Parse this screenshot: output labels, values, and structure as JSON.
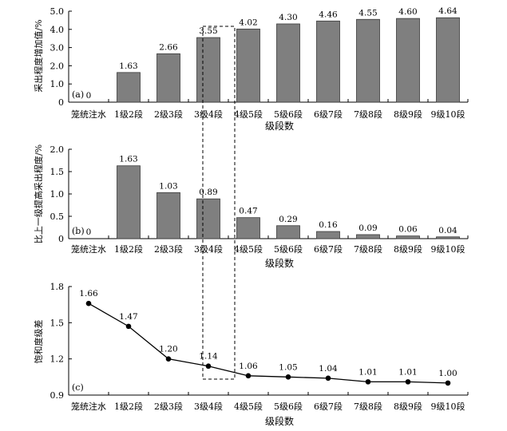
{
  "chart_data": [
    {
      "id": "a",
      "type": "bar",
      "panel_label": "(a)",
      "ylabel": "采出程度增加值/%",
      "xlabel": "级段数",
      "ylim": [
        0,
        5
      ],
      "yticks": [
        "0",
        "1.0",
        "2.0",
        "3.0",
        "4.0",
        "5.0"
      ],
      "categories": [
        "笼统注水",
        "1级2段",
        "2级3段",
        "3级4段",
        "4级5段",
        "5级6段",
        "6级7段",
        "7级8段",
        "8级9段",
        "9级10段"
      ],
      "values": [
        0,
        1.63,
        2.66,
        3.55,
        4.02,
        4.3,
        4.46,
        4.55,
        4.6,
        4.64
      ],
      "value_labels": [
        "0",
        "1.63",
        "2.66",
        "3.55",
        "4.02",
        "4.30",
        "4.46",
        "4.55",
        "4.60",
        "4.64"
      ]
    },
    {
      "id": "b",
      "type": "bar",
      "panel_label": "(b)",
      "ylabel": "比上一级提高采出程度/%",
      "xlabel": "级段数",
      "ylim": [
        0,
        2
      ],
      "yticks": [
        "0",
        "0.5",
        "1.0",
        "1.5",
        "2.0"
      ],
      "categories": [
        "笼统注水",
        "1级2段",
        "2级3段",
        "3级4段",
        "4级5段",
        "5级6段",
        "6级7段",
        "7级8段",
        "8级9段",
        "9级10段"
      ],
      "values": [
        0,
        1.63,
        1.03,
        0.89,
        0.47,
        0.29,
        0.16,
        0.09,
        0.06,
        0.04
      ],
      "value_labels": [
        "0",
        "1.63",
        "1.03",
        "0.89",
        "0.47",
        "0.29",
        "0.16",
        "0.09",
        "0.06",
        "0.04"
      ]
    },
    {
      "id": "c",
      "type": "line",
      "panel_label": "(c)",
      "ylabel": "饱和度级差",
      "xlabel": "级段数",
      "ylim": [
        0.9,
        1.8
      ],
      "yticks": [
        "0.9",
        "1.2",
        "1.5",
        "1.8"
      ],
      "categories": [
        "笼统注水",
        "1级2段",
        "2级3段",
        "3级4段",
        "4级5段",
        "5级6段",
        "6级7段",
        "7级8段",
        "8级9段",
        "9级10段"
      ],
      "values": [
        1.66,
        1.47,
        1.2,
        1.14,
        1.06,
        1.05,
        1.04,
        1.01,
        1.01,
        1.0
      ],
      "value_labels": [
        "1.66",
        "1.47",
        "1.20",
        "1.14",
        "1.06",
        "1.05",
        "1.04",
        "1.01",
        "1.01",
        "1.00"
      ]
    }
  ],
  "highlight": {
    "category_index": 3,
    "style": "dashed-box"
  },
  "colors": {
    "bar_fill": "#7f7f7f",
    "bar_stroke": "#3a3a3a",
    "line": "#000000",
    "marker": "#000000"
  }
}
